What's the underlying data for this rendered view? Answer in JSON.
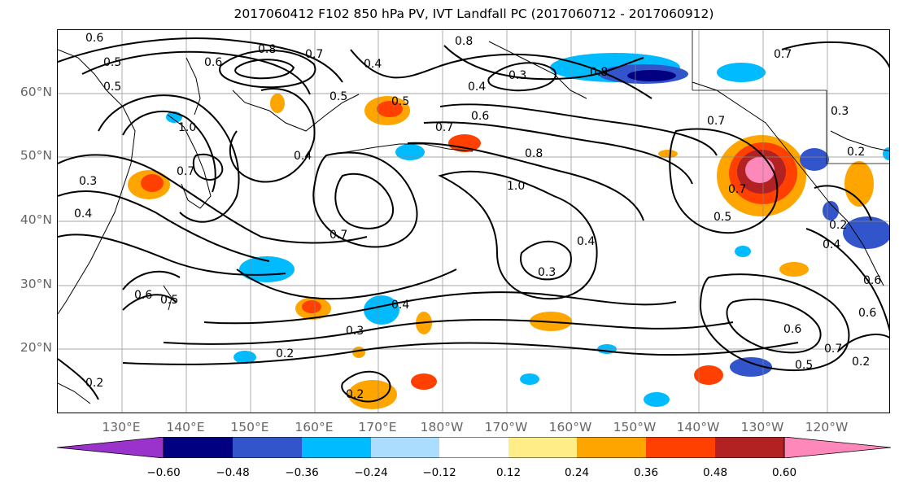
{
  "title": "2017060412 F102 850 hPa PV, IVT Landfall PC (2017060712 - 2017060912)",
  "lat_labels": [
    "60°N",
    "50°N",
    "40°N",
    "30°N",
    "20°N"
  ],
  "lon_labels": [
    "130°E",
    "140°E",
    "150°E",
    "160°E",
    "170°E",
    "180°W",
    "170°W",
    "160°W",
    "150°W",
    "140°W",
    "130°W",
    "120°W"
  ],
  "colorbar": {
    "ticks": [
      "−0.60",
      "−0.48",
      "−0.36",
      "−0.24",
      "−0.12",
      "0.12",
      "0.24",
      "0.36",
      "0.48",
      "0.60"
    ],
    "colors": [
      "#9933cc",
      "#000080",
      "#3355cc",
      "#00bbff",
      "#aaddff",
      "#ffffff",
      "#ffee88",
      "#ffa500",
      "#ff4000",
      "#b22222",
      "#ff88bb"
    ]
  },
  "contour_labels": [
    "0.6",
    "0.5",
    "0.5",
    "0.6",
    "0.8",
    "0.7",
    "0.4",
    "0.5",
    "0.3",
    "0.8",
    "0.8",
    "0.7",
    "0.7",
    "0.4",
    "0.6",
    "0.7",
    "0.3",
    "1.0",
    "0.4",
    "0.3",
    "0.4",
    "0.7",
    "0.8",
    "1.0",
    "0.7",
    "0.5",
    "0.2",
    "0.4",
    "0.6",
    "0.5",
    "0.3",
    "0.4",
    "0.2",
    "0.3",
    "0.6",
    "0.7",
    "0.5",
    "0.6",
    "0.2",
    "0.2",
    "0.2",
    "0.4",
    "0.6",
    "0.5",
    "0.7",
    "0.2"
  ]
}
